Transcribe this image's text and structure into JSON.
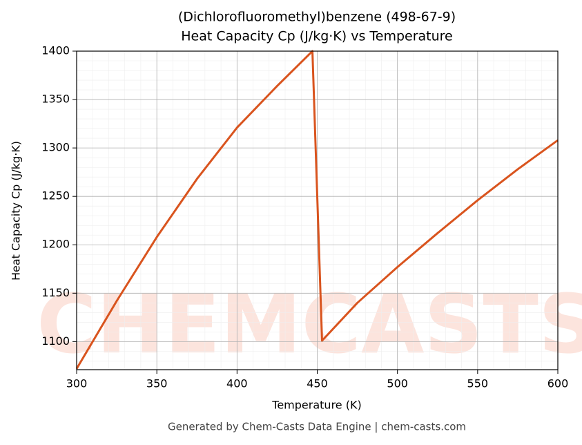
{
  "chart_data": {
    "type": "line",
    "title": "(Dichlorofluoromethyl)benzene (498-67-9)",
    "subtitle": "Heat Capacity Cp (J/kg·K) vs Temperature",
    "x_label": "Temperature (K)",
    "y_label": "Heat Capacity Cp (J/kg·K)",
    "footer": "Generated by Chem-Casts Data Engine | chem-casts.com",
    "watermark": "CHEMCASTS",
    "series": [
      {
        "name": "Cp",
        "color": "#d9541e",
        "x": [
          300,
          325,
          350,
          375,
          400,
          425,
          447,
          453,
          475,
          500,
          525,
          550,
          575,
          600
        ],
        "values": [
          1072,
          1142,
          1208,
          1268,
          1321,
          1364,
          1400,
          1101,
          1140,
          1177,
          1212,
          1246,
          1278,
          1308
        ]
      }
    ],
    "xlim": [
      300,
      600
    ],
    "xticks": [
      300,
      350,
      400,
      450,
      500,
      550,
      600
    ],
    "ylim": [
      1071,
      1400
    ],
    "yticks": [
      1100,
      1150,
      1200,
      1250,
      1300,
      1350,
      1400
    ],
    "grid": true
  }
}
